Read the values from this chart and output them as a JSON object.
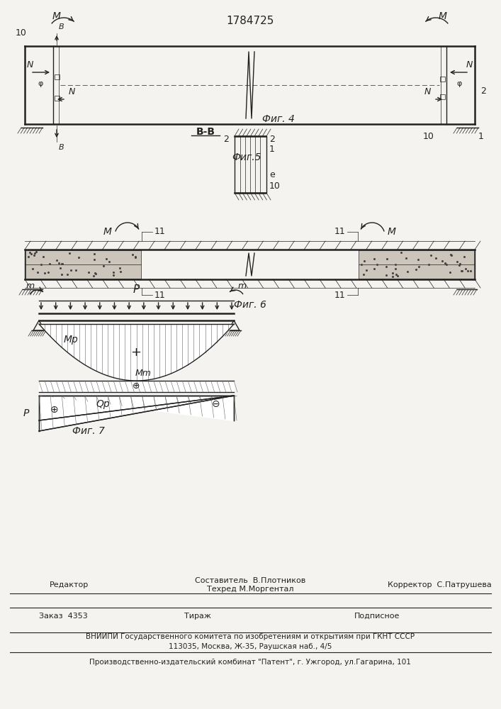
{
  "title": "1784725",
  "background": "#f5f3f0",
  "fig4_label": "Фиг. 4",
  "fig5_label": "Фиг.5",
  "fig6_label": "Фиг. 6",
  "fig7_label": "Фиг. 7",
  "bb_label": "В-В",
  "footer_line1": "Составитель  В.Плотников",
  "footer_line2": "Техред М.Моргентал",
  "footer_editor": "Редактор",
  "footer_corrector": "Корректор  С.Патрушева",
  "footer_order": "Заказ  4353",
  "footer_tirazh": "Тираж",
  "footer_podpisnoe": "Подписное",
  "footer_vniip": "ВНИИПИ Государственного комитета по изобретениям и открытиям при ГКНТ СССР",
  "footer_address": "113035, Москва, Ж-35, Раушская наб., 4/5",
  "footer_factory": "Производственно-издательский комбинат \"Патент\", г. Ужгород, ул.Гагарина, 101"
}
